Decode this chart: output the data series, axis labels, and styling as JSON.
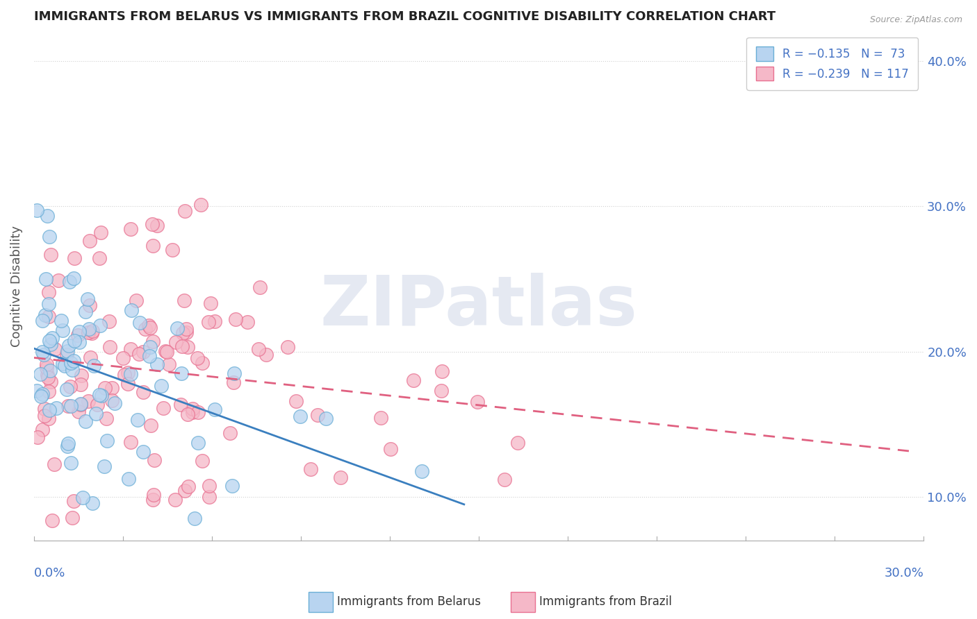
{
  "title": "IMMIGRANTS FROM BELARUS VS IMMIGRANTS FROM BRAZIL COGNITIVE DISABILITY CORRELATION CHART",
  "source": "Source: ZipAtlas.com",
  "ylabel": "Cognitive Disability",
  "xlim": [
    0.0,
    0.3
  ],
  "ylim": [
    0.07,
    0.42
  ],
  "yticks": [
    0.1,
    0.2,
    0.3,
    0.4
  ],
  "ytick_labels": [
    "10.0%",
    "20.0%",
    "30.0%",
    "40.0%"
  ],
  "xtick_left": "0.0%",
  "xtick_right": "30.0%",
  "legend_line1": "R = −0.135   N =  73",
  "legend_line2": "R = −0.239   N = 117",
  "series": [
    {
      "name": "Immigrants from Belarus",
      "marker_facecolor": "#b8d4f0",
      "marker_edgecolor": "#6aaed6",
      "trend_color": "#3a7fbf",
      "trend_style": "-",
      "trend_start_x": 0.0,
      "trend_end_x": 0.145
    },
    {
      "name": "Immigrants from Brazil",
      "marker_facecolor": "#f5b8c8",
      "marker_edgecolor": "#e87090",
      "trend_color": "#e06080",
      "trend_style": "--",
      "trend_start_x": 0.0,
      "trend_end_x": 0.295
    }
  ],
  "watermark_text": "ZIPatlas",
  "watermark_color": "#d0d8e8",
  "background_color": "#ffffff",
  "title_color": "#222222",
  "axis_label_color": "#4472c4",
  "grid_color": "#cccccc",
  "grid_style": ":"
}
